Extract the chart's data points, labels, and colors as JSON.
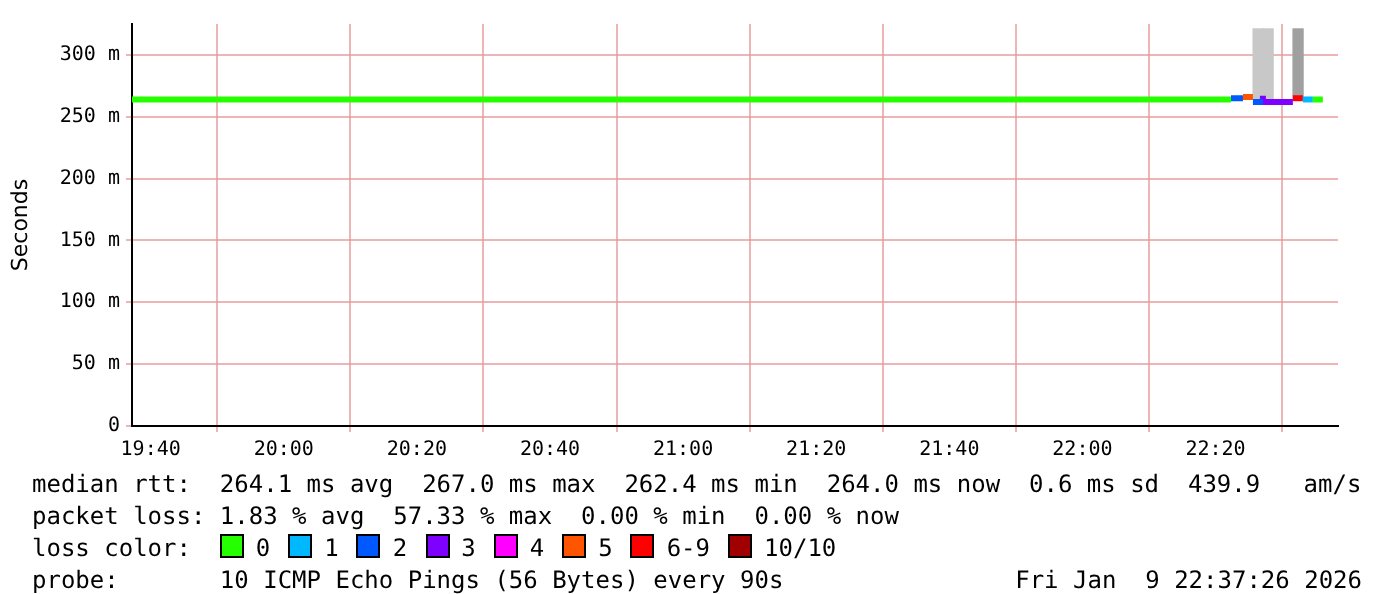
{
  "chart_data": {
    "type": "step",
    "ylabel": "Seconds",
    "xlim": [
      19.62,
      22.64
    ],
    "xticks": [
      {
        "value": 19.6667,
        "label": "19:40"
      },
      {
        "value": 20,
        "label": "20:00"
      },
      {
        "value": 20.3333,
        "label": "20:20"
      },
      {
        "value": 20.6667,
        "label": "20:40"
      },
      {
        "value": 21,
        "label": "21:00"
      },
      {
        "value": 21.3333,
        "label": "21:20"
      },
      {
        "value": 21.6667,
        "label": "21:40"
      },
      {
        "value": 22,
        "label": "22:00"
      },
      {
        "value": 22.3333,
        "label": "22:20"
      }
    ],
    "ylim": [
      0,
      325
    ],
    "yticks": [
      0,
      {
        "value": 50,
        "label": "50 m"
      },
      {
        "value": 100,
        "label": "100 m"
      },
      {
        "value": 150,
        "label": "150 m"
      },
      {
        "value": 200,
        "label": "200 m"
      },
      {
        "value": 250,
        "label": "250 m"
      },
      {
        "value": 300,
        "label": "300 m"
      }
    ],
    "grid": true,
    "legend": "bottom",
    "legend_title": "loss color:",
    "series": [
      {
        "type": "bar",
        "colors": [
          "#c8c8c8",
          "#c8c8c8",
          "#a0a0a0"
        ],
        "x": [
          22.44,
          22.465,
          22.54
        ],
        "base": [
          264,
          264,
          265
        ],
        "values": [
          57,
          57,
          56
        ]
      },
      {
        "name": "0",
        "color": "#26ff00",
        "x": [
          19.62,
          22.372,
          22.5,
          22.577,
          22.602
        ],
        "values": [
          264,
          264,
          null,
          264,
          264
        ]
      },
      {
        "name": "1",
        "color": "#00b8ff",
        "x": [
          22.552,
          22.577
        ],
        "values": [
          264,
          264
        ]
      },
      {
        "name": "2",
        "color": "#0059ff",
        "x": [
          22.372,
          22.402,
          22.41,
          22.427,
          22.452
        ],
        "values": [
          265,
          265,
          null,
          262,
          262
        ]
      },
      {
        "name": "3",
        "color": "#7e00ff",
        "x": [
          22.452,
          22.502,
          22.527
        ],
        "values": [
          267,
          262,
          262
        ]
      },
      {
        "name": "4",
        "color": "#ff00ff"
      },
      {
        "name": "5",
        "color": "#ff5500",
        "x": [
          22.402,
          22.427
        ],
        "values": [
          266,
          266
        ]
      },
      {
        "name": "6-9",
        "color": "#ff0000",
        "x": [
          22.527,
          22.552
        ],
        "values": [
          265,
          265
        ]
      },
      {
        "name": "10/10",
        "color": "#a10000"
      }
    ],
    "annotations": [
      "median rtt:  264.1 ms avg  267.0 ms max  262.4 ms min  264.0 ms now  0.6 ms sd  439.9   am/s",
      "packet loss: 1.83 % avg  57.33 % max  0.00 % min  0.00 % now",
      "probe:       10 ICMP Echo Pings (56 Bytes) every 90s",
      "Fri Jan  9 22:37:26 2026"
    ]
  }
}
